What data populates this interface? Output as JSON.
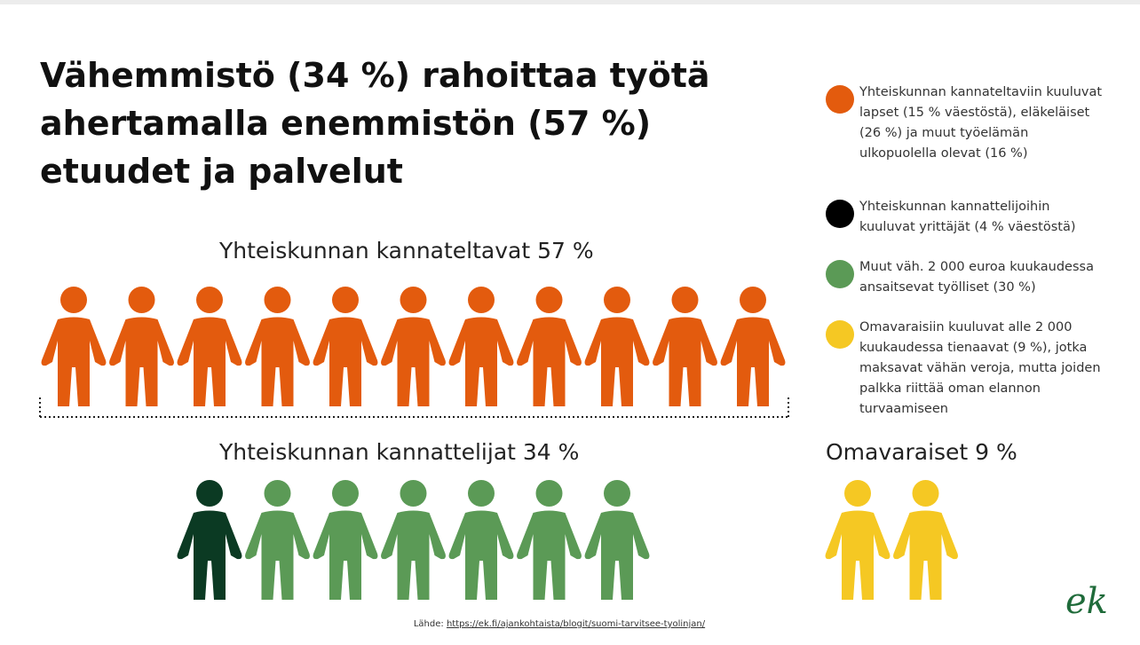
{
  "title": "Vähemmistö (34 %) rahoittaa työtä ahertamalla enemmistön (57 %) etuudet ja palvelut",
  "groups": [
    {
      "label": "Yhteiskunnan kannateltavat 57 %",
      "figures": [
        "#e35b0e",
        "#e35b0e",
        "#e35b0e",
        "#e35b0e",
        "#e35b0e",
        "#e35b0e",
        "#e35b0e",
        "#e35b0e",
        "#e35b0e",
        "#e35b0e",
        "#e35b0e"
      ]
    },
    {
      "label": "Yhteiskunnan kannattelijat 34 %",
      "figures": [
        "#0b3a23",
        "#5b9a56",
        "#5b9a56",
        "#5b9a56",
        "#5b9a56",
        "#5b9a56",
        "#5b9a56"
      ]
    },
    {
      "label": "Omavaraiset 9 %",
      "figures": [
        "#f5c823",
        "#f5c823"
      ]
    }
  ],
  "legend": [
    {
      "color": "#e35b0e",
      "text": "Yhteiskunnan kannateltaviin kuuluvat lapset (15 % väestöstä), eläkeläiset (26 %) ja muut työelämän ulkopuolella olevat (16 %)"
    },
    {
      "color": "#000000",
      "text": "Yhteiskunnan kannattelijoihin kuuluvat yrittäjät (4 % väestöstä)"
    },
    {
      "color": "#5b9a56",
      "text": "Muut väh. 2 000 euroa kuukaudessa ansaitsevat työlliset (30 %)"
    },
    {
      "color": "#f5c823",
      "text": "Omavaraisiin kuuluvat alle 2 000 kuukaudessa tienaavat (9 %), jotka maksavat vähän veroja, mutta joiden palkka riittää oman elannon turvaamiseen"
    }
  ],
  "source": {
    "prefix": "Lähde:",
    "link": "https://ek.fi/ajankohtaista/blogit/suomi-tarvitsee-tyolinjan/"
  },
  "logo": "ek"
}
